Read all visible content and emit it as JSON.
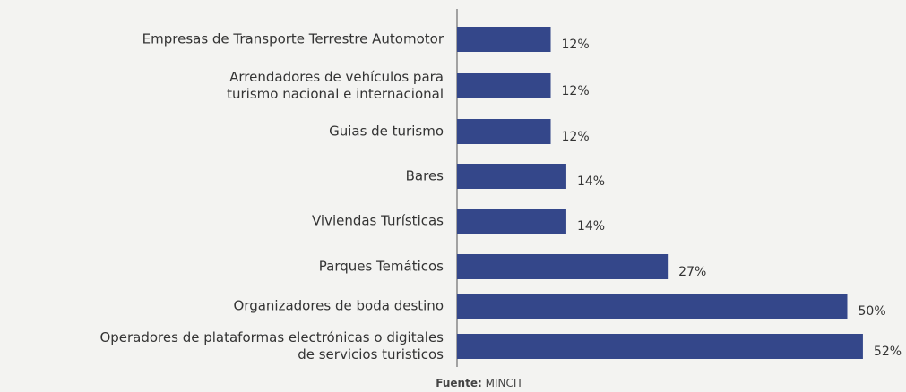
{
  "chart_data": {
    "type": "barh",
    "categories": [
      "Empresas de Transporte Terrestre Automotor",
      "Arrendadores de vehículos para\nturismo nacional e internacional",
      "Guias de turismo",
      "Bares",
      "Viviendas Turísticas",
      "Parques Temáticos",
      "Organizadores de boda destino",
      "Operadores de plataformas electrónicas o digitales\nde servicios turisticos"
    ],
    "values": [
      12,
      12,
      12,
      14,
      14,
      27,
      50,
      52
    ],
    "value_labels": [
      "12%",
      "12%",
      "12%",
      "14%",
      "14%",
      "27%",
      "50%",
      "52%"
    ],
    "color": "#34478a",
    "source_label": "Fuente:",
    "source": "MINCIT"
  }
}
